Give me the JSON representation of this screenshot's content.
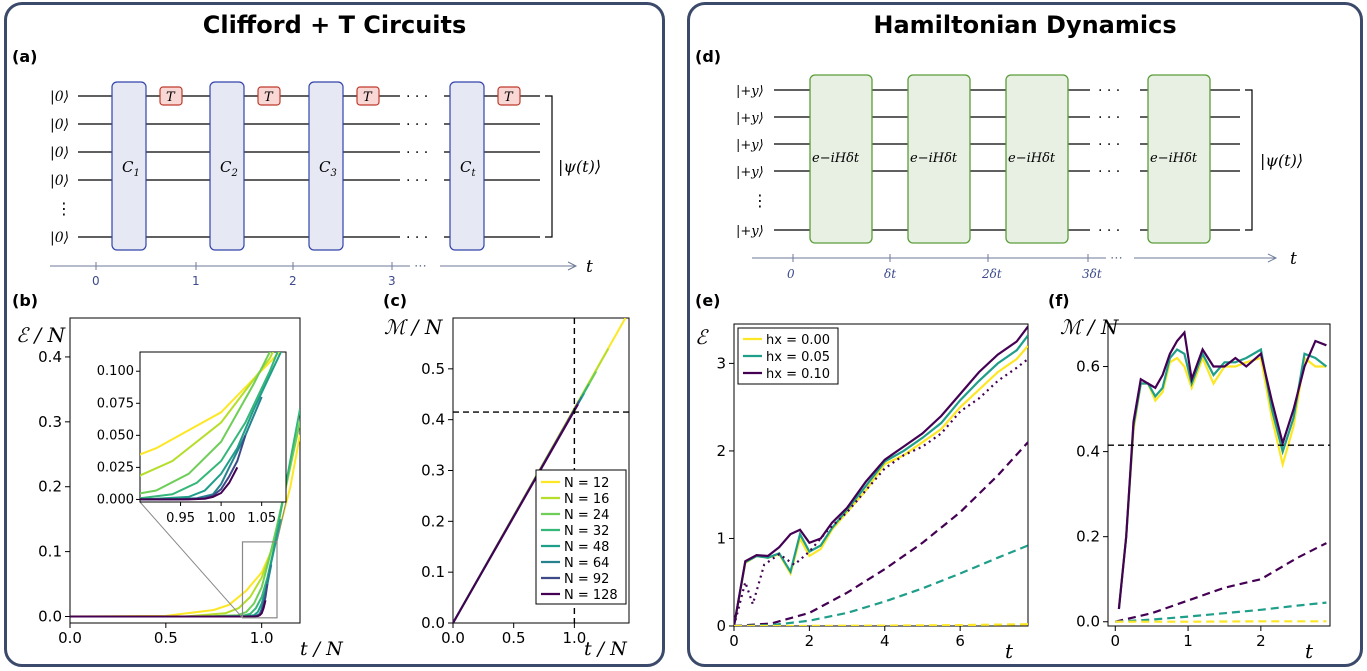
{
  "left": {
    "title": "Clifford + T  Circuits",
    "circuit": {
      "label": "(a)",
      "inputs": [
        "|0⟩",
        "|0⟩",
        "|0⟩",
        "|0⟩",
        "⋮",
        "|0⟩"
      ],
      "gates": [
        "C1",
        "C2",
        "C3",
        "Ct"
      ],
      "t_gate": "T",
      "output": "|ψ(t)⟩",
      "time_ticks": [
        "0",
        "1",
        "2",
        "3"
      ],
      "time_dots": "⋯",
      "time_symbol": "t"
    }
  },
  "right": {
    "title": "Hamiltonian Dynamics",
    "circuit": {
      "label": "(d)",
      "inputs": [
        "|+y⟩",
        "|+y⟩",
        "|+y⟩",
        "|+y⟩",
        "⋮",
        "|+y⟩"
      ],
      "gate_label": "e−iHδt",
      "output": "|ψ(t)⟩",
      "time_ticks": [
        "0",
        "δt",
        "2δt",
        "3δt"
      ],
      "time_dots": "⋯",
      "time_symbol": "t"
    }
  },
  "colors": {
    "c12": "#fde725",
    "c16": "#b5de2b",
    "c24": "#6ece58",
    "c32": "#35b779",
    "c48": "#1f9e89",
    "c64": "#26828e",
    "c92": "#3e4989",
    "c128": "#440154",
    "frame": "#3b4a6b",
    "clifford_fill": "#e6e8f3",
    "clifford_stroke": "#3344aa",
    "tgate_fill": "#f8d7d5",
    "tgate_stroke": "#c0392b",
    "ham_fill": "#e8efe3",
    "ham_stroke": "#5a9e3a"
  },
  "chart_data": [
    {
      "id": "b",
      "label": "(b)",
      "type": "line",
      "ylabel": "ℰ / N",
      "xlabel": "t / N",
      "xlim": [
        0,
        1.2
      ],
      "ylim": [
        -0.01,
        0.46
      ],
      "xticks": [
        "0.0",
        "0.5",
        "1.0"
      ],
      "yticks": [
        "0.0",
        "0.1",
        "0.2",
        "0.3",
        "0.4"
      ],
      "series": [
        {
          "name": "N = 12",
          "x": [
            0,
            0.5,
            0.75,
            0.83,
            0.92,
            1.0,
            1.08,
            1.15,
            1.2
          ],
          "y": [
            0,
            0.001,
            0.01,
            0.018,
            0.04,
            0.068,
            0.12,
            0.2,
            0.28
          ]
        },
        {
          "name": "N = 16",
          "x": [
            0,
            0.6,
            0.81,
            0.88,
            0.94,
            1.0,
            1.06,
            1.12,
            1.2
          ],
          "y": [
            0,
            0,
            0.005,
            0.013,
            0.03,
            0.06,
            0.11,
            0.19,
            0.3
          ]
        },
        {
          "name": "N = 24",
          "x": [
            0,
            0.7,
            0.875,
            0.92,
            0.96,
            1.0,
            1.04,
            1.08,
            1.2
          ],
          "y": [
            0,
            0,
            0.002,
            0.007,
            0.02,
            0.045,
            0.09,
            0.14,
            0.3
          ]
        },
        {
          "name": "N = 32",
          "x": [
            0,
            0.75,
            0.9,
            0.94,
            0.97,
            1.0,
            1.03,
            1.06,
            1.2
          ],
          "y": [
            0,
            0,
            0.001,
            0.004,
            0.013,
            0.03,
            0.06,
            0.1,
            0.32
          ]
        },
        {
          "name": "N = 48",
          "x": [
            0,
            0.8,
            0.92,
            0.96,
            0.98,
            1.0,
            1.02,
            1.04,
            1.1
          ],
          "y": [
            0,
            0,
            0.0005,
            0.002,
            0.007,
            0.02,
            0.04,
            0.07,
            0.15
          ]
        },
        {
          "name": "N = 64",
          "x": [
            0,
            0.85,
            0.94,
            0.97,
            0.99,
            1.0,
            1.01,
            1.03,
            1.05
          ],
          "y": [
            0,
            0,
            0,
            0.001,
            0.004,
            0.012,
            0.025,
            0.05,
            0.08
          ]
        },
        {
          "name": "N = 92",
          "x": [
            0,
            0.88,
            0.95,
            0.98,
            0.99,
            1.0,
            1.01,
            1.02,
            1.03
          ],
          "y": [
            0,
            0,
            0,
            0.001,
            0.003,
            0.008,
            0.018,
            0.03,
            0.05
          ]
        },
        {
          "name": "N = 128",
          "x": [
            0,
            0.9,
            0.96,
            0.98,
            0.99,
            1.0,
            1.01,
            1.02
          ],
          "y": [
            0,
            0,
            0,
            0.0005,
            0.002,
            0.005,
            0.013,
            0.025
          ]
        }
      ],
      "inset": {
        "xlim": [
          0.9,
          1.08
        ],
        "ylim": [
          -0.002,
          0.115
        ],
        "xticks": [
          "0.95",
          "1.00",
          "1.05"
        ],
        "yticks": [
          "0.000",
          "0.025",
          "0.050",
          "0.075",
          "0.100"
        ],
        "zoom_box": {
          "x": [
            0.9,
            1.08
          ],
          "y": [
            -0.002,
            0.115
          ]
        }
      }
    },
    {
      "id": "c",
      "label": "(c)",
      "type": "line",
      "ylabel": "ℳ / N",
      "xlabel": "t / N",
      "xlim": [
        0,
        1.45
      ],
      "ylim": [
        0,
        0.6
      ],
      "xticks": [
        "0.0",
        "0.5",
        "1.0"
      ],
      "yticks": [
        "0.0",
        "0.1",
        "0.2",
        "0.3",
        "0.4",
        "0.5"
      ],
      "hline": 0.415,
      "vline": 1.0,
      "series": [
        {
          "name": "N = 12",
          "x": [
            0,
            1.42
          ],
          "y": [
            0,
            0.6
          ]
        },
        {
          "name": "N = 16",
          "x": [
            0,
            1.28
          ],
          "y": [
            0,
            0.54
          ]
        },
        {
          "name": "N = 24",
          "x": [
            0,
            1.18
          ],
          "y": [
            0,
            0.495
          ]
        },
        {
          "name": "N = 32",
          "x": [
            0,
            1.12
          ],
          "y": [
            0,
            0.47
          ]
        },
        {
          "name": "N = 48",
          "x": [
            0,
            1.08
          ],
          "y": [
            0,
            0.452
          ]
        },
        {
          "name": "N = 64",
          "x": [
            0,
            1.06
          ],
          "y": [
            0,
            0.445
          ]
        },
        {
          "name": "N = 92",
          "x": [
            0,
            1.04
          ],
          "y": [
            0,
            0.437
          ]
        },
        {
          "name": "N = 128",
          "x": [
            0,
            1.03
          ],
          "y": [
            0,
            0.43
          ]
        }
      ],
      "legend": [
        "N = 12",
        "N = 16",
        "N = 24",
        "N = 32",
        "N = 48",
        "N = 64",
        "N = 92",
        "N = 128"
      ]
    },
    {
      "id": "e",
      "label": "(e)",
      "type": "line",
      "ylabel": "ℰ",
      "xlabel": "t",
      "xlim": [
        0,
        7.8
      ],
      "ylim": [
        0,
        3.45
      ],
      "xticks": [
        "0",
        "2",
        "4",
        "6"
      ],
      "yticks": [
        "0",
        "1",
        "2",
        "3"
      ],
      "legend": [
        "hx = 0.00",
        "hx = 0.05",
        "hx = 0.10"
      ],
      "series": [
        {
          "name": "hx = 0.00",
          "style": "solid",
          "x": [
            0,
            0.3,
            0.6,
            0.9,
            1.2,
            1.5,
            1.75,
            2.0,
            2.3,
            2.6,
            3.0,
            3.5,
            4.0,
            4.5,
            5.0,
            5.5,
            6.0,
            6.5,
            7.0,
            7.5,
            7.8
          ],
          "y": [
            0,
            0.72,
            0.8,
            0.78,
            0.82,
            0.6,
            1.0,
            0.8,
            0.88,
            1.1,
            1.3,
            1.55,
            1.85,
            1.95,
            2.1,
            2.25,
            2.5,
            2.7,
            2.9,
            3.05,
            3.2
          ]
        },
        {
          "name": "hx = 0.05",
          "style": "solid",
          "x": [
            0,
            0.3,
            0.6,
            0.9,
            1.2,
            1.5,
            1.75,
            2.0,
            2.3,
            2.6,
            3.0,
            3.5,
            4.0,
            4.5,
            5.0,
            5.5,
            6.0,
            6.5,
            7.0,
            7.5,
            7.8
          ],
          "y": [
            0,
            0.73,
            0.8,
            0.78,
            0.83,
            0.62,
            1.05,
            0.85,
            0.92,
            1.12,
            1.33,
            1.6,
            1.88,
            2.0,
            2.15,
            2.32,
            2.58,
            2.8,
            3.0,
            3.15,
            3.32
          ]
        },
        {
          "name": "hx = 0.10",
          "style": "solid",
          "x": [
            0,
            0.3,
            0.6,
            0.9,
            1.2,
            1.5,
            1.75,
            2.0,
            2.3,
            2.6,
            3.0,
            3.5,
            4.0,
            4.5,
            5.0,
            5.5,
            6.0,
            6.5,
            7.0,
            7.5,
            7.8
          ],
          "y": [
            0,
            0.74,
            0.81,
            0.8,
            0.9,
            1.05,
            1.1,
            0.95,
            1.0,
            1.18,
            1.35,
            1.65,
            1.9,
            2.05,
            2.2,
            2.4,
            2.65,
            2.9,
            3.1,
            3.25,
            3.42
          ]
        },
        {
          "name": "",
          "style": "dotted",
          "x": [
            0,
            0.3,
            0.5,
            0.8,
            1.2,
            1.6,
            2.0,
            2.5,
            3.0,
            3.5,
            4.0,
            4.5,
            5.0,
            5.5,
            6.0,
            6.5,
            7.0,
            7.5,
            7.8
          ],
          "y": [
            0,
            0.5,
            0.25,
            0.7,
            0.82,
            0.7,
            0.85,
            1.1,
            1.3,
            1.55,
            1.8,
            1.95,
            2.05,
            2.2,
            2.45,
            2.6,
            2.8,
            2.95,
            3.05
          ]
        },
        {
          "name": "",
          "style": "dashed",
          "x": [
            0,
            1,
            2,
            3,
            4,
            5,
            6,
            7,
            7.8
          ],
          "y": [
            0,
            0.03,
            0.15,
            0.38,
            0.65,
            0.95,
            1.3,
            1.72,
            2.1
          ]
        },
        {
          "name": "",
          "style": "dashed",
          "x": [
            0,
            1,
            2,
            3,
            4,
            5,
            6,
            7,
            7.8
          ],
          "y": [
            0,
            0.01,
            0.06,
            0.15,
            0.28,
            0.43,
            0.6,
            0.78,
            0.92
          ]
        },
        {
          "name": "",
          "style": "dashed",
          "x": [
            0,
            2,
            4,
            6,
            7.8
          ],
          "y": [
            0,
            0.001,
            0.004,
            0.01,
            0.02
          ]
        }
      ]
    },
    {
      "id": "f",
      "label": "(f)",
      "type": "line",
      "ylabel": "ℳ / N",
      "xlabel": "t",
      "xlim": [
        -0.1,
        2.95
      ],
      "ylim": [
        -0.01,
        0.7
      ],
      "xticks": [
        "0",
        "1",
        "2"
      ],
      "yticks": [
        "0.0",
        "0.2",
        "0.4",
        "0.6"
      ],
      "hline": 0.415,
      "series": [
        {
          "name": "hx = 0.00",
          "style": "solid",
          "x": [
            0.05,
            0.15,
            0.25,
            0.35,
            0.45,
            0.55,
            0.65,
            0.75,
            0.85,
            0.95,
            1.05,
            1.2,
            1.35,
            1.5,
            1.65,
            1.8,
            2.0,
            2.15,
            2.3,
            2.45,
            2.6,
            2.75,
            2.9
          ],
          "y": [
            0.03,
            0.2,
            0.45,
            0.56,
            0.56,
            0.52,
            0.54,
            0.61,
            0.62,
            0.6,
            0.55,
            0.62,
            0.56,
            0.6,
            0.6,
            0.61,
            0.62,
            0.48,
            0.37,
            0.46,
            0.62,
            0.6,
            0.6
          ]
        },
        {
          "name": "hx = 0.05",
          "style": "solid",
          "x": [
            0.05,
            0.15,
            0.25,
            0.35,
            0.45,
            0.55,
            0.65,
            0.75,
            0.85,
            0.95,
            1.05,
            1.2,
            1.35,
            1.5,
            1.65,
            1.8,
            2.0,
            2.15,
            2.3,
            2.45,
            2.6,
            2.75,
            2.9
          ],
          "y": [
            0.03,
            0.2,
            0.46,
            0.56,
            0.56,
            0.53,
            0.55,
            0.62,
            0.64,
            0.63,
            0.56,
            0.63,
            0.58,
            0.61,
            0.61,
            0.62,
            0.64,
            0.5,
            0.4,
            0.48,
            0.63,
            0.62,
            0.6
          ]
        },
        {
          "name": "hx = 0.10",
          "style": "solid",
          "x": [
            0.05,
            0.15,
            0.25,
            0.35,
            0.45,
            0.55,
            0.65,
            0.75,
            0.85,
            0.95,
            1.05,
            1.2,
            1.35,
            1.5,
            1.65,
            1.8,
            2.0,
            2.15,
            2.3,
            2.45,
            2.6,
            2.75,
            2.9
          ],
          "y": [
            0.03,
            0.2,
            0.47,
            0.57,
            0.56,
            0.55,
            0.58,
            0.63,
            0.66,
            0.68,
            0.57,
            0.64,
            0.6,
            0.6,
            0.62,
            0.6,
            0.63,
            0.52,
            0.42,
            0.5,
            0.6,
            0.66,
            0.65
          ]
        },
        {
          "name": "",
          "style": "dashed",
          "x": [
            0,
            0.5,
            1,
            1.5,
            2,
            2.5,
            2.9
          ],
          "y": [
            0,
            0.02,
            0.05,
            0.08,
            0.1,
            0.15,
            0.185
          ]
        },
        {
          "name": "",
          "style": "dashed",
          "x": [
            0,
            0.5,
            1,
            1.5,
            2,
            2.5,
            2.9
          ],
          "y": [
            0,
            0.005,
            0.012,
            0.02,
            0.028,
            0.038,
            0.045
          ]
        },
        {
          "name": "",
          "style": "dashed",
          "x": [
            0,
            1,
            2,
            2.9
          ],
          "y": [
            0,
            0,
            0.001,
            0.001
          ]
        }
      ]
    }
  ]
}
